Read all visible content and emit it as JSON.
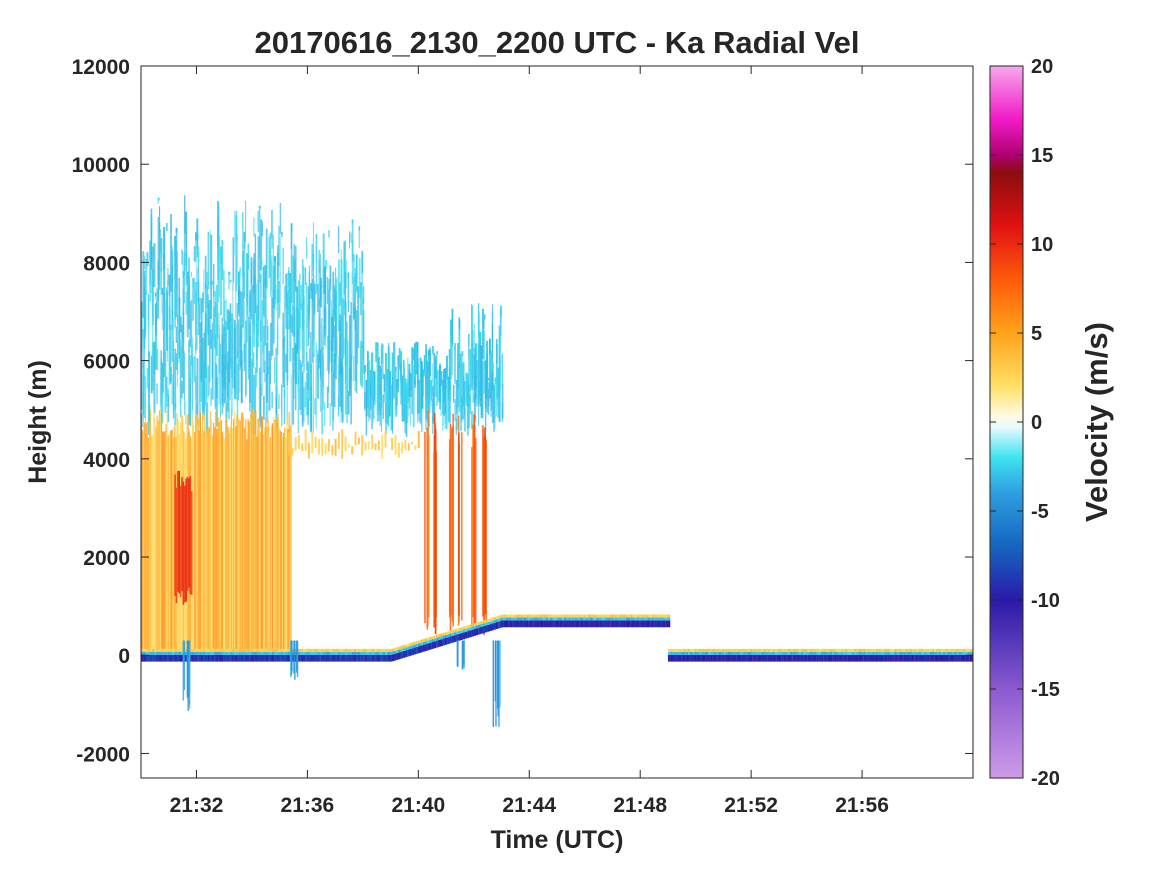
{
  "chart_data": {
    "type": "heatmap",
    "title": "20170616_2130_2200 UTC - Ka Radial Vel",
    "xlabel": "Time (UTC)",
    "ylabel": "Height (m)",
    "xlim": [
      "21:30",
      "22:00"
    ],
    "ylim": [
      -2500,
      12000
    ],
    "x_ticks": [
      "21:32",
      "21:36",
      "21:40",
      "21:44",
      "21:48",
      "21:52",
      "21:56"
    ],
    "y_ticks": [
      -2000,
      0,
      2000,
      4000,
      6000,
      8000,
      10000,
      12000
    ],
    "colorbar": {
      "label": "Velocity (m/s)",
      "range": [
        -20,
        20
      ],
      "ticks": [
        -20,
        -15,
        -10,
        -5,
        0,
        5,
        10,
        15,
        20
      ],
      "tick_labels": [
        "-20",
        "-15",
        "-10",
        "-5",
        "0",
        "5",
        "10",
        "15",
        "20"
      ],
      "stops": [
        {
          "value": -20,
          "color": "#cf9be8"
        },
        {
          "value": -15,
          "color": "#8a5ad0"
        },
        {
          "value": -10,
          "color": "#2a1aa8"
        },
        {
          "value": -7,
          "color": "#1565c0"
        },
        {
          "value": -4,
          "color": "#2e9ee0"
        },
        {
          "value": -2,
          "color": "#3de3ef"
        },
        {
          "value": -0.3,
          "color": "#e6fbff"
        },
        {
          "value": 0.3,
          "color": "#fffbe6"
        },
        {
          "value": 2,
          "color": "#ffe066"
        },
        {
          "value": 5,
          "color": "#ffa31a"
        },
        {
          "value": 8,
          "color": "#ff5a0a"
        },
        {
          "value": 11,
          "color": "#e01212"
        },
        {
          "value": 14,
          "color": "#8b0d0d"
        },
        {
          "value": 15,
          "color": "#b00072"
        },
        {
          "value": 17,
          "color": "#f21ac7"
        },
        {
          "value": 20,
          "color": "#f7a8ee"
        }
      ]
    },
    "field_regions": [
      {
        "name": "upper-cloud-downward",
        "t_start": "21:30",
        "t_end": "21:43",
        "h_bottom": 4700,
        "h_top": 9400,
        "velocity": -2
      },
      {
        "name": "rain-upward-echo",
        "t_start": "21:30",
        "t_end": "21:35",
        "h_bottom": 0,
        "h_top": 4800,
        "velocity": 4
      },
      {
        "name": "rain-core",
        "t_start": "21:31",
        "t_end": "21:32",
        "h_bottom": 1000,
        "h_top": 3800,
        "velocity": 11
      },
      {
        "name": "late-rain-shafts",
        "t_start": "21:40",
        "t_end": "21:42",
        "h_bottom": 400,
        "h_top": 5000,
        "velocity": 8
      },
      {
        "name": "ground-clutter-band-1",
        "t_start": "21:30",
        "t_end": "21:43",
        "h_bottom": -200,
        "h_top": 100,
        "velocity": -8
      },
      {
        "name": "ground-clutter-band-2",
        "t_start": "21:43",
        "t_end": "21:49",
        "h_bottom": 500,
        "h_top": 800,
        "velocity": -9
      },
      {
        "name": "ground-clutter-band-3",
        "t_start": "21:49",
        "t_end": "22:00",
        "h_bottom": -200,
        "h_top": 100,
        "velocity": -9
      }
    ]
  }
}
